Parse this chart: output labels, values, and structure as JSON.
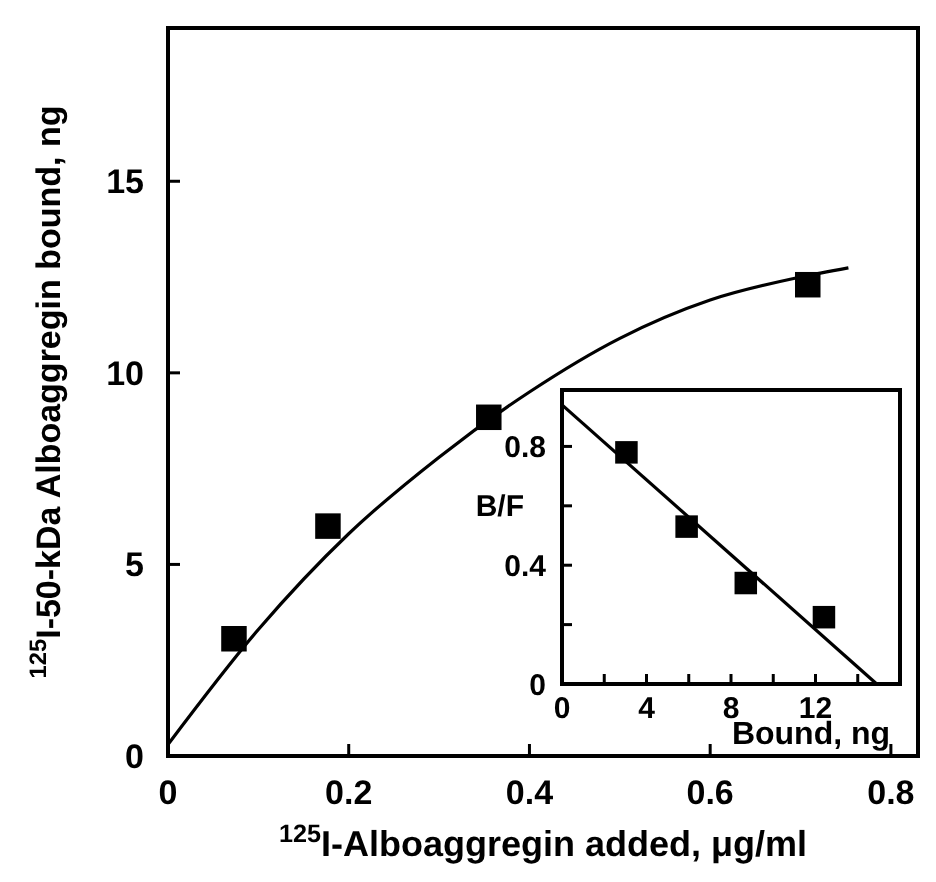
{
  "chart_data": [
    {
      "type": "scatter",
      "xlabel": "$^{125}$I-Alboaggregin added, μg/ml",
      "ylabel": "$^{125}$I-50-kDa Alboaggregin bound, ng",
      "xlim": [
        0,
        0.83
      ],
      "ylim": [
        0,
        19
      ],
      "xticks": [
        0,
        0.2,
        0.4,
        0.6,
        0.8
      ],
      "yticks": [
        0,
        5,
        10,
        15
      ],
      "grid": false,
      "series": [
        {
          "color": "#000000",
          "marker": "square",
          "x": [
            0.073,
            0.177,
            0.355,
            0.708
          ],
          "values": [
            3.06,
            6.0,
            8.84,
            12.3
          ]
        },
        {
          "type": "line",
          "color": "#000000",
          "x": [
            0,
            0.1,
            0.2,
            0.3,
            0.4,
            0.5,
            0.6,
            0.7,
            0.753
          ],
          "values": [
            0.3,
            3.3,
            5.8,
            7.8,
            9.5,
            10.9,
            11.9,
            12.5,
            12.74
          ]
        }
      ]
    },
    {
      "type": "scatter",
      "xlabel": "Bound, ng",
      "ylabel": "B/F",
      "xlim": [
        0,
        16
      ],
      "ylim": [
        0,
        0.99
      ],
      "xticks": [
        0,
        {
          "value": 2,
          "label": null
        },
        4,
        {
          "value": 6,
          "label": null
        },
        8,
        {
          "value": 10,
          "label": null
        },
        12,
        {
          "value": 14,
          "label": null
        }
      ],
      "yticks": [
        0,
        {
          "value": 0.2,
          "label": null
        },
        0.4,
        {
          "value": 0.6,
          "label": null
        },
        0.8
      ],
      "grid": false,
      "series": [
        {
          "color": "#000000",
          "marker": "square",
          "x": [
            3.05,
            5.9,
            8.7,
            12.4
          ],
          "values": [
            0.78,
            0.53,
            0.34,
            0.225
          ]
        },
        {
          "type": "line",
          "color": "#000000",
          "x": [
            0,
            14.9
          ],
          "values": [
            0.94,
            0
          ]
        }
      ]
    }
  ]
}
